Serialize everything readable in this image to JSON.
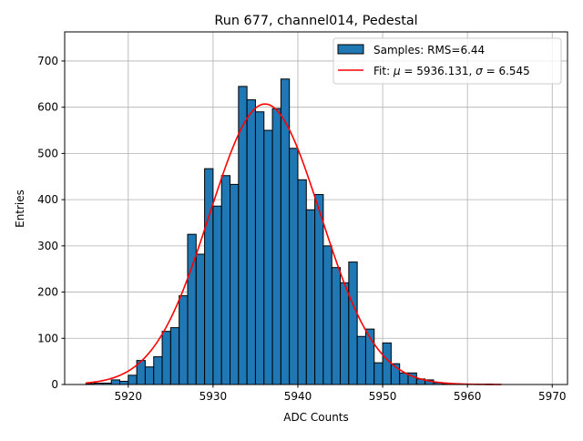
{
  "chart_data": {
    "type": "bar",
    "title": "Run 677, channel014, Pedestal",
    "xlabel": "ADC Counts",
    "ylabel": "Entries",
    "xlim": [
      5912.5,
      5971.8
    ],
    "ylim": [
      0,
      763
    ],
    "xticks": [
      5920,
      5930,
      5940,
      5950,
      5960,
      5970
    ],
    "yticks": [
      0,
      100,
      200,
      300,
      400,
      500,
      600,
      700
    ],
    "grid": true,
    "legend_placement": "top-right",
    "histogram": {
      "name": "Samples: RMS=6.44",
      "color": "#1f77b4",
      "edgecolor": "#000000",
      "bin_start": 5915,
      "bin_width": 1,
      "values": [
        2,
        3,
        3,
        10,
        7,
        20,
        52,
        38,
        60,
        115,
        123,
        192,
        325,
        282,
        467,
        386,
        452,
        433,
        645,
        616,
        590,
        550,
        597,
        661,
        511,
        443,
        378,
        411,
        300,
        253,
        220,
        265,
        104,
        120,
        47,
        90,
        45,
        25,
        25,
        12,
        10,
        4,
        2,
        1,
        1,
        0,
        0,
        1,
        0
      ]
    },
    "fit": {
      "name_prefix": "Fit: ",
      "name_mu": "μ",
      "name_mid": " = 5936.131, ",
      "name_sigma": "σ",
      "name_end": " = 6.545",
      "color": "#ff0000",
      "mu": 5936.131,
      "sigma": 6.545,
      "amplitude": 607,
      "range": [
        5915,
        5964
      ]
    }
  }
}
